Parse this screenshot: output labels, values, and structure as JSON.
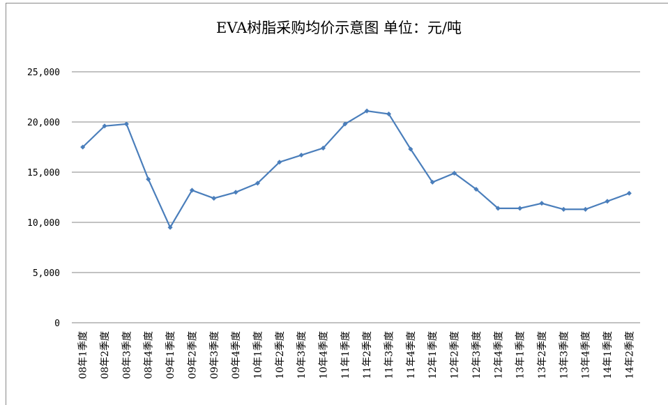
{
  "chart_data": {
    "type": "line",
    "title": "EVA树脂采购均价示意图 单位：元/吨",
    "categories": [
      "08年1季度",
      "08年2季度",
      "08年3季度",
      "08年4季度",
      "09年1季度",
      "09年2季度",
      "09年3季度",
      "09年4季度",
      "10年1季度",
      "10年2季度",
      "10年3季度",
      "10年4季度",
      "11年1季度",
      "11年2季度",
      "11年3季度",
      "11年4季度",
      "12年1季度",
      "12年2季度",
      "12年3季度",
      "12年4季度",
      "13年1季度",
      "13年2季度",
      "13年3季度",
      "13年4季度",
      "14年1季度",
      "14年2季度"
    ],
    "series": [
      {
        "name": "EVA树脂采购均价",
        "color": "#4a7ebb",
        "values": [
          17500,
          19600,
          19800,
          14300,
          9500,
          13200,
          12400,
          13000,
          13900,
          16000,
          16700,
          17400,
          19800,
          21100,
          20800,
          17300,
          14000,
          14900,
          13300,
          11400,
          11400,
          11900,
          11300,
          11300,
          12100,
          12900
        ]
      }
    ],
    "ylim": [
      0,
      25000
    ],
    "yticks": [
      0,
      {
        "value": 5000,
        "label": "5,000"
      },
      {
        "value": 10000,
        "label": "10,000"
      },
      {
        "value": 15000,
        "label": "15,000"
      },
      {
        "value": 20000,
        "label": "20,000"
      },
      {
        "value": 25000,
        "label": "25,000"
      }
    ],
    "grid": true
  }
}
